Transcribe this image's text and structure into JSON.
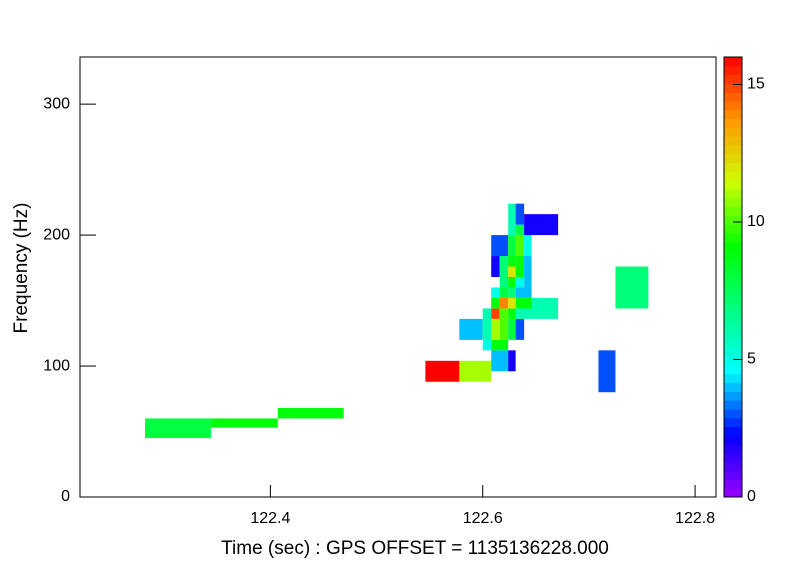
{
  "chart_data": {
    "type": "heatmap",
    "xlabel": "Time (sec) : GPS OFFSET = 1135136228.000",
    "ylabel": "Frequency (Hz)",
    "xlim": [
      122.2207,
      122.8197
    ],
    "xticks": [
      122.4,
      122.6,
      122.8
    ],
    "ylim": [
      0,
      336
    ],
    "yticks": [
      0,
      100,
      200,
      300
    ],
    "zlim": [
      0,
      16
    ],
    "zticks": [
      0,
      5,
      10,
      15
    ],
    "colormap": [
      "#9900ff",
      "#0000ff",
      "#00ffff",
      "#00ff80",
      "#00ff00",
      "#ccff00",
      "#ff9900",
      "#ff0000"
    ],
    "tiles": [
      [
        122.282,
        122.344,
        45,
        60,
        8
      ],
      [
        122.344,
        122.407,
        53,
        60,
        9
      ],
      [
        122.407,
        122.469,
        60,
        68,
        9
      ],
      [
        122.546,
        122.578,
        88,
        104,
        16
      ],
      [
        122.578,
        122.608,
        88,
        104,
        11
      ],
      [
        122.578,
        122.6,
        120,
        136,
        4
      ],
      [
        122.608,
        122.624,
        96,
        112,
        4
      ],
      [
        122.624,
        122.631,
        96,
        112,
        2
      ],
      [
        122.6,
        122.608,
        120,
        144,
        6
      ],
      [
        122.6,
        122.608,
        112,
        120,
        5
      ],
      [
        122.608,
        122.624,
        112,
        120,
        9
      ],
      [
        122.608,
        122.616,
        120,
        136,
        11
      ],
      [
        122.616,
        122.624,
        120,
        136,
        10
      ],
      [
        122.624,
        122.631,
        120,
        136,
        8
      ],
      [
        122.631,
        122.639,
        120,
        136,
        3
      ],
      [
        122.608,
        122.616,
        136,
        144,
        15
      ],
      [
        122.616,
        122.624,
        136,
        144,
        10
      ],
      [
        122.624,
        122.631,
        136,
        144,
        9
      ],
      [
        122.631,
        122.646,
        136,
        144,
        6
      ],
      [
        122.646,
        122.671,
        136,
        152,
        6
      ],
      [
        122.608,
        122.616,
        144,
        152,
        9
      ],
      [
        122.616,
        122.624,
        144,
        152,
        14
      ],
      [
        122.624,
        122.631,
        144,
        152,
        12
      ],
      [
        122.631,
        122.646,
        144,
        152,
        9
      ],
      [
        122.608,
        122.616,
        152,
        160,
        5
      ],
      [
        122.616,
        122.624,
        152,
        160,
        8
      ],
      [
        122.624,
        122.631,
        152,
        160,
        7
      ],
      [
        122.631,
        122.646,
        152,
        160,
        4
      ],
      [
        122.616,
        122.624,
        160,
        168,
        7
      ],
      [
        122.624,
        122.631,
        160,
        168,
        9
      ],
      [
        122.631,
        122.639,
        160,
        168,
        5
      ],
      [
        122.608,
        122.616,
        168,
        184,
        2
      ],
      [
        122.616,
        122.624,
        168,
        184,
        7
      ],
      [
        122.624,
        122.631,
        168,
        176,
        12
      ],
      [
        122.624,
        122.631,
        176,
        184,
        9
      ],
      [
        122.631,
        122.639,
        168,
        184,
        9
      ],
      [
        122.639,
        122.646,
        160,
        184,
        4
      ],
      [
        122.608,
        122.624,
        184,
        200,
        3
      ],
      [
        122.624,
        122.631,
        184,
        200,
        8
      ],
      [
        122.631,
        122.639,
        184,
        200,
        10
      ],
      [
        122.639,
        122.646,
        184,
        200,
        5
      ],
      [
        122.624,
        122.631,
        200,
        208,
        6
      ],
      [
        122.631,
        122.639,
        200,
        208,
        8
      ],
      [
        122.639,
        122.646,
        200,
        208,
        6
      ],
      [
        122.624,
        122.631,
        208,
        224,
        6
      ],
      [
        122.631,
        122.639,
        208,
        224,
        3
      ],
      [
        122.639,
        122.671,
        200,
        216,
        2
      ],
      [
        122.709,
        122.725,
        80,
        112,
        3
      ],
      [
        122.725,
        122.756,
        144,
        176,
        7
      ]
    ]
  }
}
